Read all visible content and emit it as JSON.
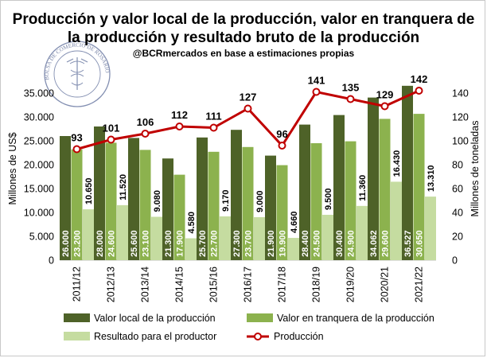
{
  "chart_data": {
    "type": "bar",
    "title_line1": "Producción y valor local de la producción, valor en tranquera de",
    "title_line2": "la producción y resultado bruto de la producción",
    "subtitle": "@BCRmercados en base a estimaciones propias",
    "ylabel": "Millones de US$",
    "y2label": "Millones de toneladas",
    "ylim": [
      0,
      40000
    ],
    "y2lim": [
      0,
      160
    ],
    "yticks": [
      "0",
      "5.000",
      "10.000",
      "15.000",
      "20.000",
      "25.000",
      "30.000",
      "35.000"
    ],
    "y2ticks": [
      "0",
      "20",
      "40",
      "60",
      "80",
      "100",
      "120",
      "140"
    ],
    "categories": [
      "2011/12",
      "2012/13",
      "2013/14",
      "2014/15",
      "2015/16",
      "2016/17",
      "2017/18",
      "2018/19",
      "2019/20",
      "2020/21",
      "2021/22"
    ],
    "series": [
      {
        "name": "Valor local de la producción",
        "type": "bar",
        "color": "#4e6228",
        "values": [
          26000,
          28000,
          25600,
          21300,
          25700,
          27300,
          21900,
          28400,
          30400,
          34062,
          36527
        ],
        "labels": [
          "26.000",
          "28.000",
          "25.600",
          "21.300",
          "25.700",
          "27.300",
          "21.900",
          "28.400",
          "30.400",
          "34.062",
          "36.527"
        ]
      },
      {
        "name": "Valor en tranquera de la producción",
        "type": "bar",
        "color": "#8cb24e",
        "values": [
          23200,
          24600,
          23100,
          17900,
          22700,
          23700,
          19900,
          24500,
          24900,
          29600,
          30650
        ],
        "labels": [
          "23.200",
          "24.600",
          "23.100",
          "17.900",
          "22.700",
          "23.700",
          "19.900",
          "24.500",
          "24.900",
          "29.600",
          "30.650"
        ]
      },
      {
        "name": "Resultado para el productor",
        "type": "bar",
        "color": "#c5dca0",
        "values": [
          10650,
          11520,
          9080,
          4580,
          9170,
          9000,
          4660,
          9500,
          11360,
          16430,
          13310
        ],
        "labels": [
          "10.650",
          "11.520",
          "9.080",
          "4.580",
          "9.170",
          "9.000",
          "4.660",
          "9.500",
          "11.360",
          "16.430",
          "13.310"
        ]
      },
      {
        "name": "Producción",
        "type": "line",
        "axis": "y2",
        "color": "#c00000",
        "values": [
          93,
          101,
          106,
          112,
          111,
          127,
          96,
          141,
          135,
          129,
          142
        ],
        "labels": [
          "93",
          "101",
          "106",
          "112",
          "111",
          "127",
          "96",
          "141",
          "135",
          "129",
          "142"
        ]
      }
    ],
    "legend_position": "bottom",
    "grid": false
  },
  "watermark": {
    "text_top": "BOLSA DE COMERCIO DE ROSARIO"
  }
}
